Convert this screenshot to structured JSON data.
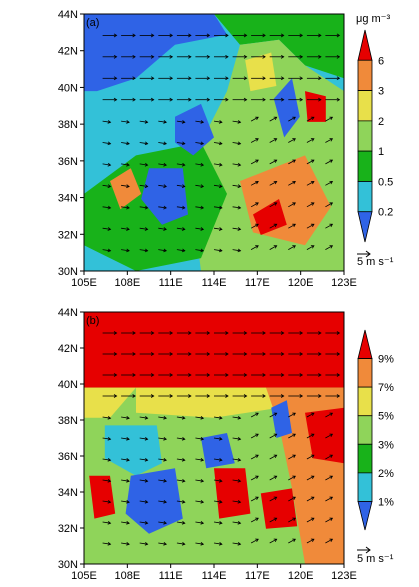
{
  "panels": [
    {
      "label": "(a)",
      "unit": "μg m⁻³",
      "levels": [
        "6",
        "3",
        "2",
        "1",
        "0.5",
        "0.2"
      ],
      "colors": [
        "#e60000",
        "#f08a3a",
        "#e8e04a",
        "#8fd45a",
        "#18b21a",
        "#33c1d8",
        "#2f63e6"
      ],
      "wind_ref": "5 m s⁻¹",
      "lat_ticks": [
        "44N",
        "42N",
        "40N",
        "38N",
        "36N",
        "34N",
        "32N",
        "30N"
      ],
      "lon_ticks": [
        "105E",
        "108E",
        "111E",
        "114E",
        "117E",
        "120E",
        "123E"
      ]
    },
    {
      "label": "(b)",
      "unit": "",
      "levels": [
        "9%",
        "7%",
        "5%",
        "3%",
        "2%",
        "1%"
      ],
      "colors": [
        "#e60000",
        "#f08a3a",
        "#e8e04a",
        "#8fd45a",
        "#18b21a",
        "#33c1d8",
        "#2f63e6"
      ],
      "wind_ref": "5 m s⁻¹",
      "lat_ticks": [
        "44N",
        "42N",
        "40N",
        "38N",
        "36N",
        "34N",
        "32N",
        "30N"
      ],
      "lon_ticks": [
        "105E",
        "108E",
        "111E",
        "114E",
        "117E",
        "120E",
        "123E"
      ]
    }
  ]
}
